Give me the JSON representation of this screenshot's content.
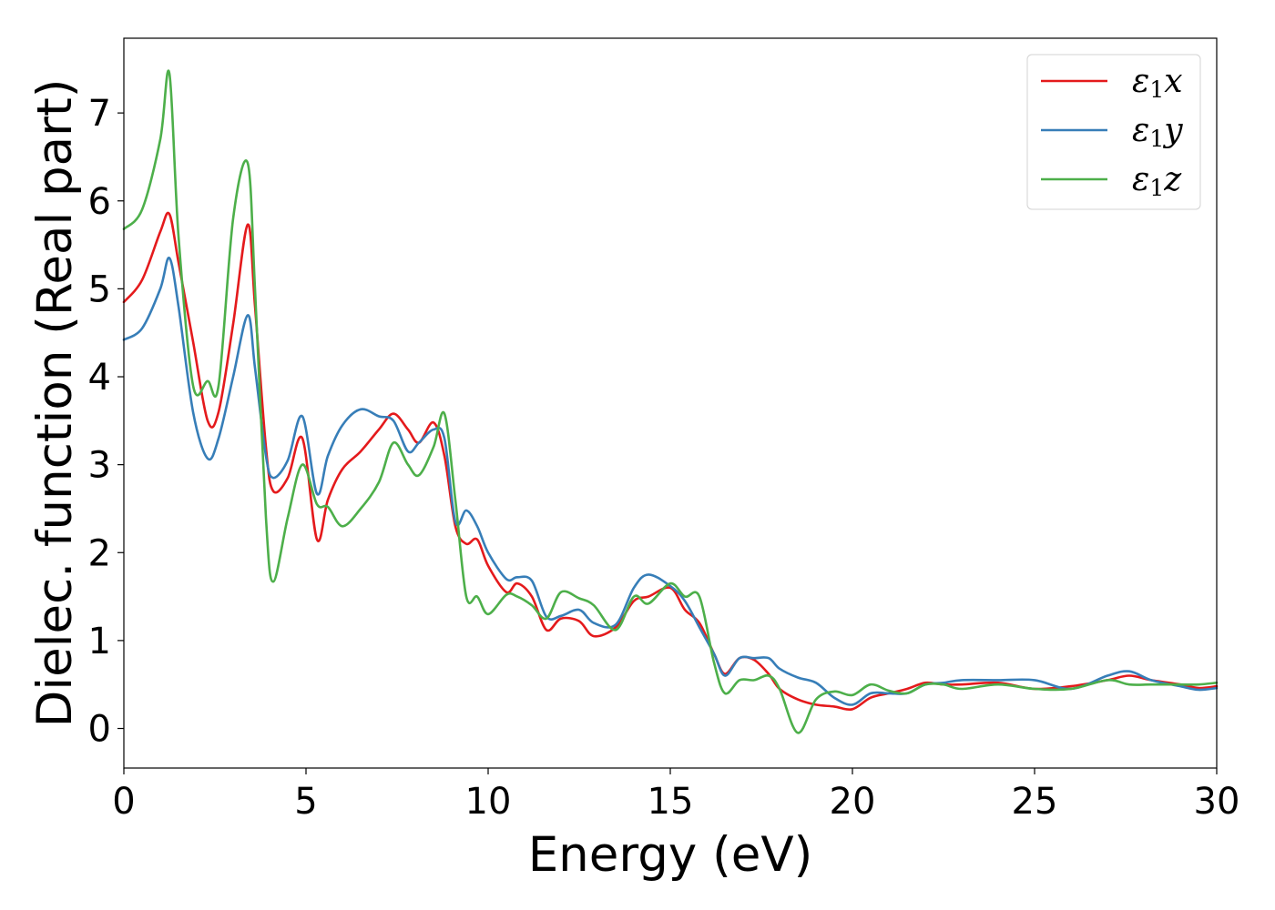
{
  "chart_data": {
    "type": "line",
    "xlabel": "Energy (eV)",
    "ylabel": "Dielec. function (Real part)",
    "xlim": [
      0,
      30
    ],
    "ylim": [
      -0.45,
      7.85
    ],
    "xticks": [
      "0",
      "5",
      "10",
      "15",
      "20",
      "25",
      "30"
    ],
    "yticks": [
      "0",
      "1",
      "2",
      "3",
      "4",
      "5",
      "6",
      "7"
    ],
    "grid": false,
    "legend_position": "top-right",
    "series": [
      {
        "name": "ε₁x",
        "legend": {
          "base": "ε",
          "sub": "1",
          "var": "x"
        },
        "color": "#e41a1c",
        "x": [
          0,
          0.5,
          1.0,
          1.25,
          1.5,
          1.9,
          2.3,
          2.6,
          3.0,
          3.4,
          3.6,
          3.9,
          4.1,
          4.5,
          4.9,
          5.3,
          5.6,
          6.0,
          6.5,
          7.0,
          7.4,
          7.8,
          8.1,
          8.5,
          8.8,
          9.1,
          9.4,
          9.7,
          10.0,
          10.5,
          10.8,
          11.2,
          11.6,
          12.0,
          12.5,
          12.9,
          13.5,
          14.0,
          14.4,
          15.0,
          15.4,
          15.8,
          16.2,
          16.5,
          16.9,
          17.3,
          17.7,
          18.0,
          18.5,
          19.0,
          19.5,
          20.0,
          20.5,
          21.0,
          21.5,
          22.0,
          22.5,
          23.0,
          24.0,
          25.0,
          26.0,
          27.0,
          27.6,
          28.2,
          29.0,
          29.5,
          30.0
        ],
        "values": [
          4.85,
          5.1,
          5.65,
          5.85,
          5.3,
          4.4,
          3.5,
          3.6,
          4.6,
          5.73,
          4.8,
          3.2,
          2.7,
          2.85,
          3.3,
          2.15,
          2.6,
          2.95,
          3.15,
          3.4,
          3.58,
          3.4,
          3.25,
          3.48,
          3.1,
          2.3,
          2.1,
          2.15,
          1.85,
          1.55,
          1.65,
          1.5,
          1.12,
          1.25,
          1.22,
          1.05,
          1.15,
          1.45,
          1.5,
          1.6,
          1.35,
          1.2,
          0.85,
          0.62,
          0.8,
          0.78,
          0.62,
          0.45,
          0.33,
          0.27,
          0.25,
          0.22,
          0.35,
          0.4,
          0.45,
          0.52,
          0.5,
          0.5,
          0.52,
          0.45,
          0.48,
          0.55,
          0.6,
          0.55,
          0.5,
          0.46,
          0.48
        ]
      },
      {
        "name": "ε₁y",
        "legend": {
          "base": "ε",
          "sub": "1",
          "var": "y"
        },
        "color": "#377eb8",
        "x": [
          0,
          0.5,
          1.0,
          1.25,
          1.5,
          1.9,
          2.3,
          2.6,
          3.0,
          3.4,
          3.6,
          3.9,
          4.1,
          4.5,
          4.9,
          5.3,
          5.6,
          6.0,
          6.5,
          7.0,
          7.4,
          7.8,
          8.1,
          8.5,
          8.8,
          9.1,
          9.4,
          9.7,
          10.0,
          10.5,
          10.8,
          11.2,
          11.6,
          12.0,
          12.5,
          12.9,
          13.5,
          14.0,
          14.4,
          15.0,
          15.4,
          15.8,
          16.2,
          16.5,
          16.9,
          17.3,
          17.7,
          18.0,
          18.5,
          19.0,
          19.5,
          20.0,
          20.5,
          21.0,
          21.5,
          22.0,
          22.5,
          23.0,
          24.0,
          25.0,
          26.0,
          27.0,
          27.6,
          28.2,
          29.0,
          29.5,
          30.0
        ],
        "values": [
          4.42,
          4.55,
          5.0,
          5.35,
          4.8,
          3.6,
          3.07,
          3.3,
          4.0,
          4.7,
          4.1,
          3.1,
          2.85,
          3.05,
          3.55,
          2.67,
          3.1,
          3.45,
          3.63,
          3.55,
          3.5,
          3.15,
          3.25,
          3.4,
          3.3,
          2.35,
          2.48,
          2.3,
          2.0,
          1.7,
          1.72,
          1.68,
          1.27,
          1.28,
          1.35,
          1.2,
          1.18,
          1.6,
          1.75,
          1.62,
          1.45,
          1.15,
          0.85,
          0.6,
          0.8,
          0.8,
          0.8,
          0.68,
          0.58,
          0.52,
          0.35,
          0.27,
          0.4,
          0.4,
          0.4,
          0.5,
          0.52,
          0.55,
          0.55,
          0.55,
          0.45,
          0.6,
          0.65,
          0.55,
          0.48,
          0.44,
          0.46
        ]
      },
      {
        "name": "ε₁z",
        "legend": {
          "base": "ε",
          "sub": "1",
          "var": "z"
        },
        "color": "#4daf4a",
        "x": [
          0,
          0.5,
          1.0,
          1.25,
          1.5,
          1.9,
          2.3,
          2.6,
          3.0,
          3.4,
          3.6,
          3.9,
          4.1,
          4.5,
          4.9,
          5.3,
          5.6,
          6.0,
          6.5,
          7.0,
          7.4,
          7.8,
          8.1,
          8.5,
          8.8,
          9.1,
          9.4,
          9.7,
          10.0,
          10.5,
          10.8,
          11.2,
          11.6,
          12.0,
          12.5,
          12.9,
          13.5,
          14.0,
          14.4,
          15.0,
          15.4,
          15.8,
          16.2,
          16.5,
          16.9,
          17.3,
          17.7,
          18.0,
          18.5,
          19.0,
          19.5,
          20.0,
          20.5,
          21.0,
          21.5,
          22.0,
          22.5,
          23.0,
          24.0,
          25.0,
          26.0,
          27.0,
          27.6,
          28.2,
          29.0,
          29.5,
          30.0
        ],
        "values": [
          5.68,
          5.9,
          6.7,
          7.45,
          5.6,
          3.9,
          3.95,
          3.9,
          5.8,
          6.43,
          5.0,
          2.4,
          1.67,
          2.4,
          3.0,
          2.55,
          2.52,
          2.3,
          2.5,
          2.8,
          3.25,
          3.0,
          2.88,
          3.2,
          3.58,
          2.6,
          1.5,
          1.5,
          1.3,
          1.52,
          1.5,
          1.4,
          1.25,
          1.55,
          1.48,
          1.4,
          1.12,
          1.5,
          1.42,
          1.65,
          1.5,
          1.5,
          0.75,
          0.4,
          0.55,
          0.55,
          0.6,
          0.45,
          -0.05,
          0.33,
          0.42,
          0.38,
          0.5,
          0.43,
          0.4,
          0.5,
          0.5,
          0.45,
          0.5,
          0.45,
          0.45,
          0.55,
          0.5,
          0.5,
          0.5,
          0.5,
          0.52
        ]
      }
    ]
  }
}
